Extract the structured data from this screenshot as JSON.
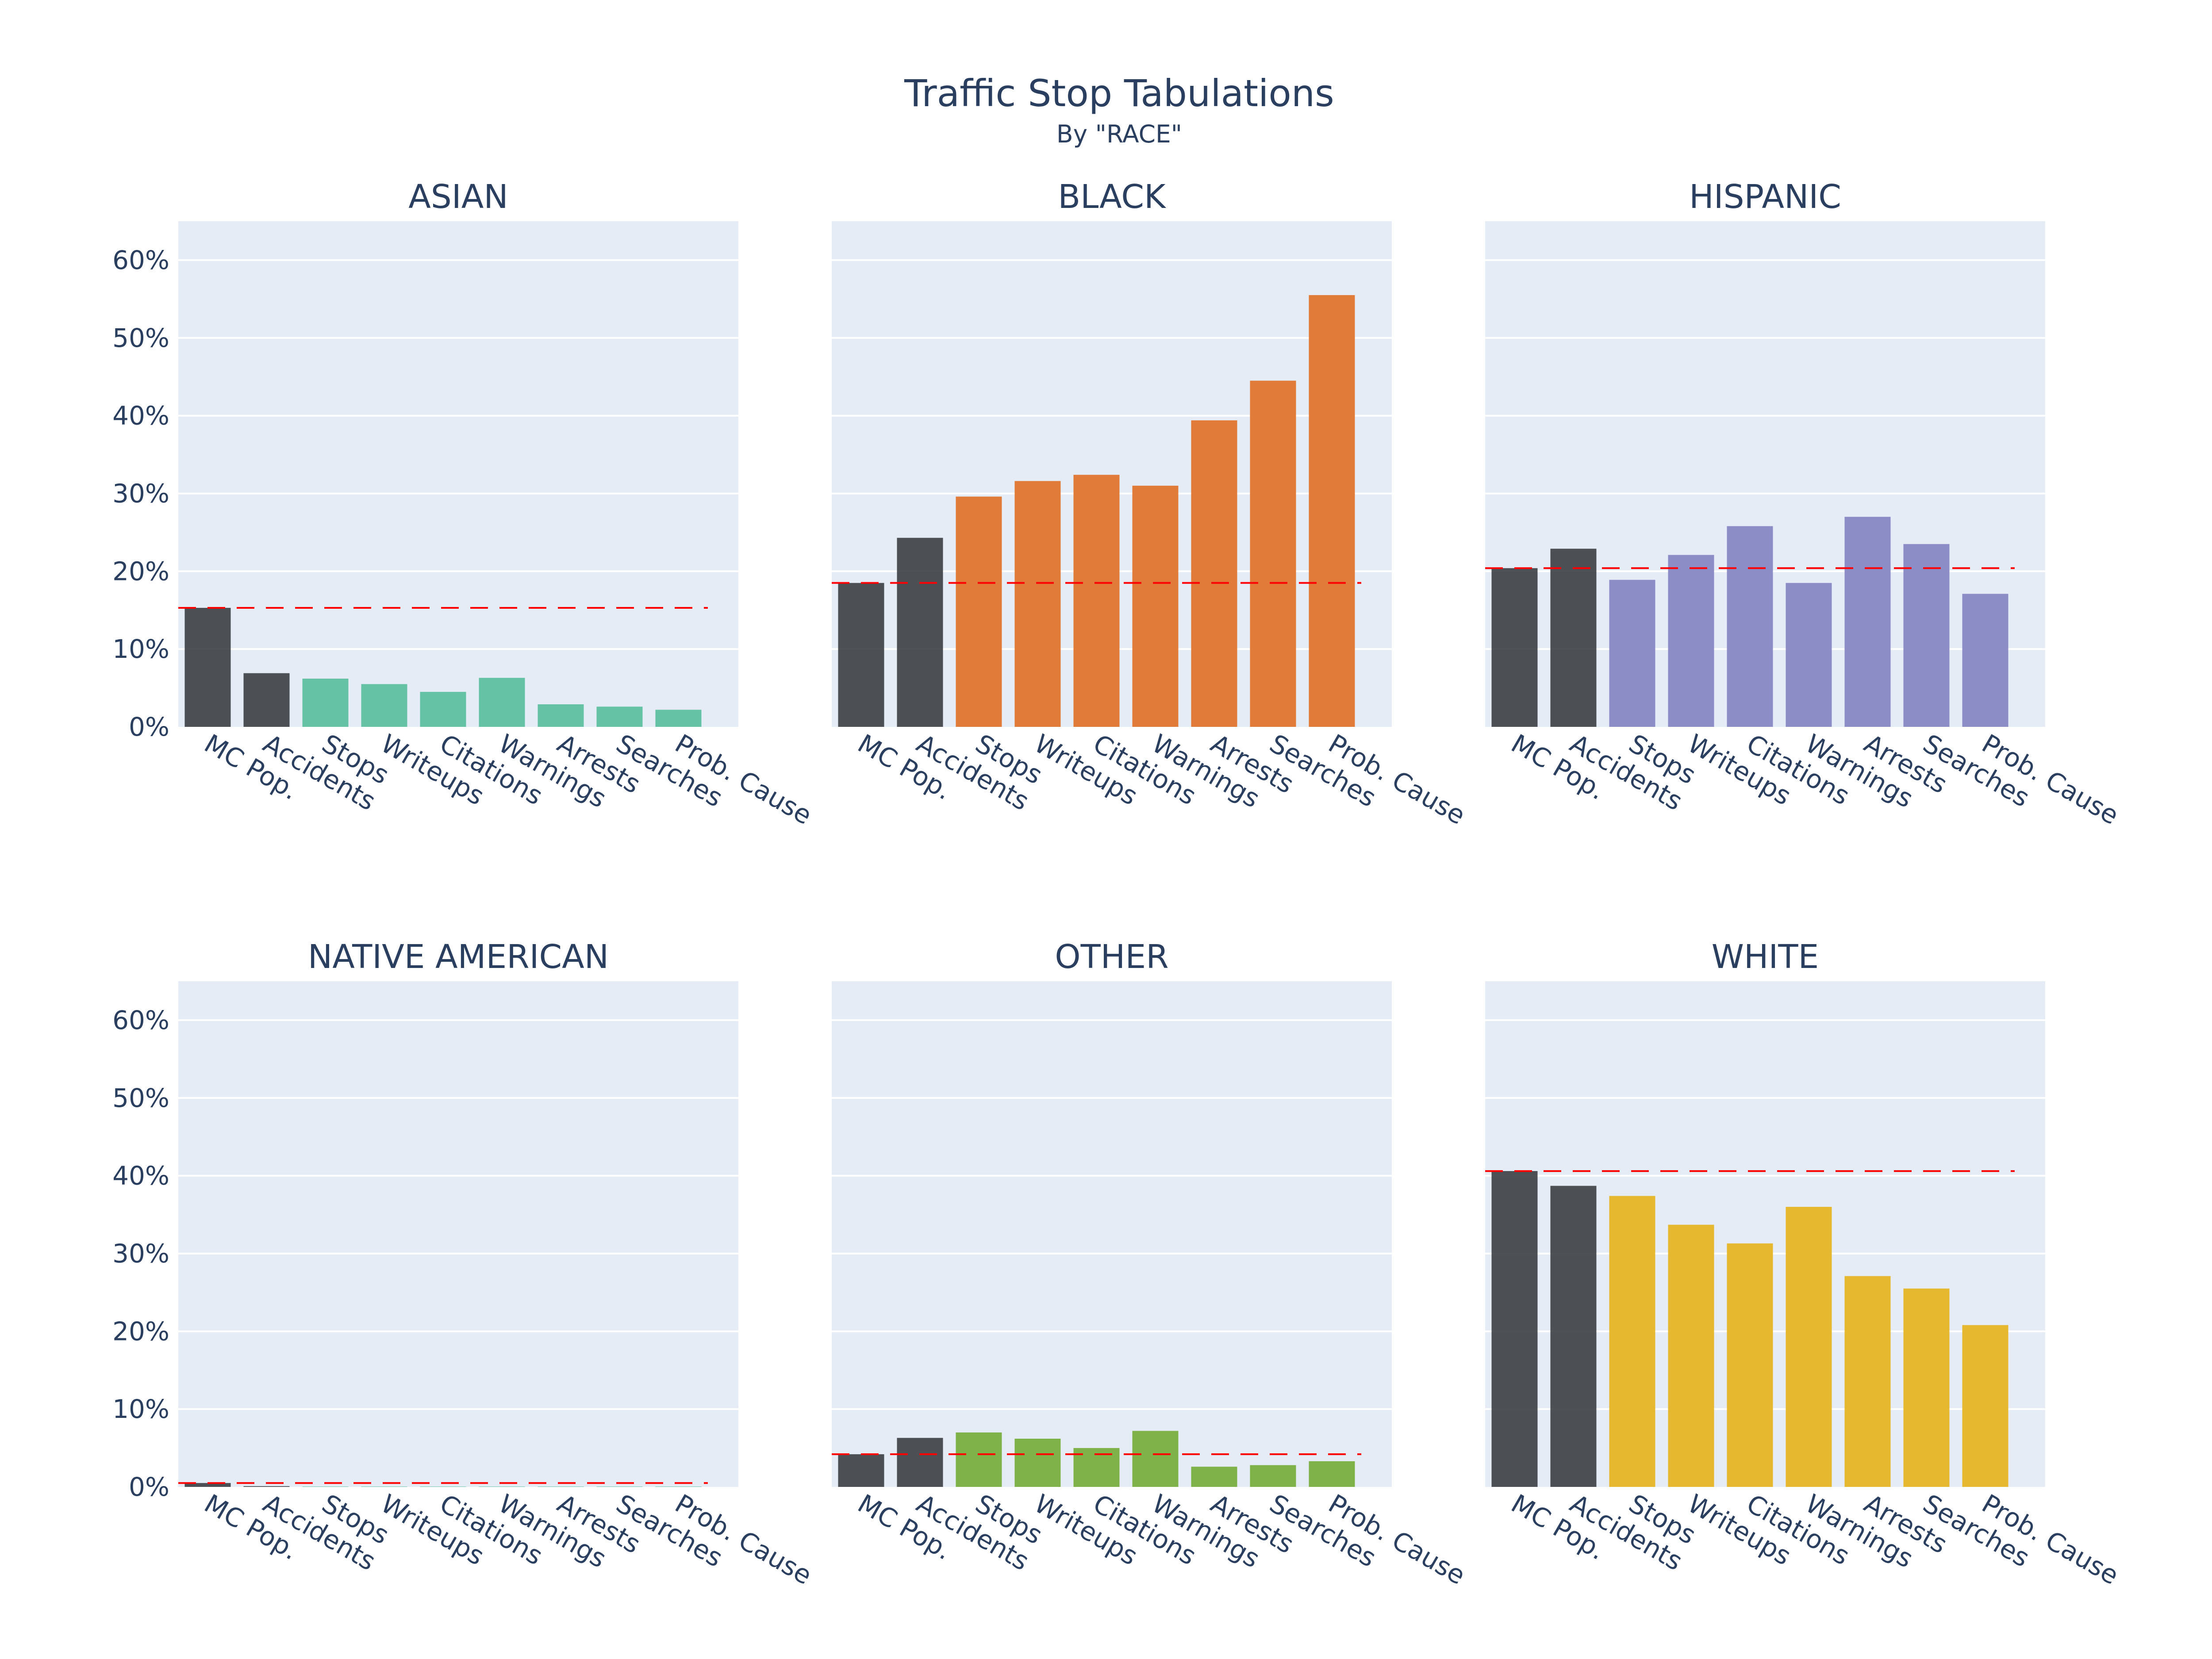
{
  "title": "Traffic Stop Tabulations",
  "subtitle": "By \"RACE\"",
  "colors": {
    "plot_bg": "#e5ecf6",
    "grid": "#ffffff",
    "baseline_bar": "#3b3f43",
    "reference_line": "#ff0000",
    "text": "#2a3f5f"
  },
  "chart_data": {
    "type": "bar",
    "layout": "2x3 small multiples",
    "categories": [
      "MC Pop.",
      "Accidents",
      "Stops",
      "Writeups",
      "Citations",
      "Warnings",
      "Arrests",
      "Searches",
      "Prob. Cause"
    ],
    "y_ticks": [
      "0%",
      "10%",
      "20%",
      "30%",
      "40%",
      "50%",
      "60%"
    ],
    "ylim": [
      0,
      65
    ],
    "grid": true,
    "reference_line": "dashed red line at MC Pop. value",
    "panels": [
      {
        "name": "ASIAN",
        "color": "#66c2a5",
        "values": [
          15.3,
          6.9,
          6.2,
          5.5,
          4.5,
          6.3,
          2.9,
          2.6,
          2.2
        ]
      },
      {
        "name": "BLACK",
        "color": "#e07b39",
        "values": [
          18.5,
          24.3,
          29.6,
          31.6,
          32.4,
          31.0,
          39.4,
          44.5,
          55.5
        ]
      },
      {
        "name": "HISPANIC",
        "color": "#8c8cc6",
        "values": [
          20.4,
          22.9,
          18.9,
          22.1,
          25.8,
          18.5,
          27.0,
          23.5,
          17.1
        ]
      },
      {
        "name": "NATIVE AMERICAN",
        "color": "#66c2a5",
        "values": [
          0.5,
          0.1,
          0.05,
          0.05,
          0.05,
          0.05,
          0.05,
          0.05,
          0.05
        ]
      },
      {
        "name": "OTHER",
        "color": "#7fb34a",
        "values": [
          4.2,
          6.3,
          7.0,
          6.2,
          5.0,
          7.2,
          2.6,
          2.8,
          3.3
        ]
      },
      {
        "name": "WHITE",
        "color": "#e5b82f",
        "values": [
          40.6,
          38.7,
          37.4,
          33.7,
          31.3,
          36.0,
          27.1,
          25.5,
          20.8
        ]
      }
    ]
  }
}
